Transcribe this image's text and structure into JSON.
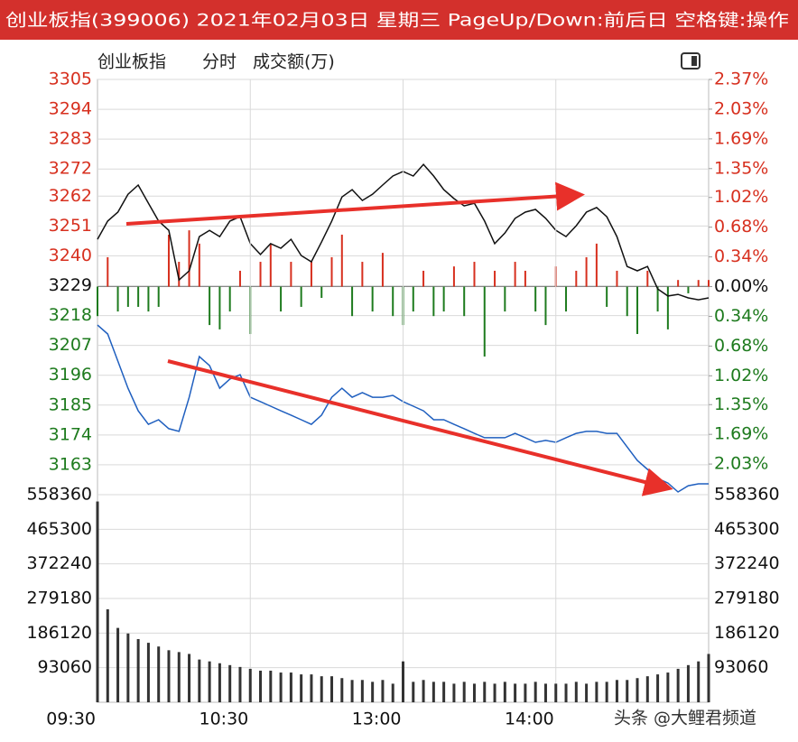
{
  "header": {
    "title": "创业板指(399006) 2021年02月03日 星期三 PageUp/Down:前后日 空格键:操作"
  },
  "chart_data": [
    {
      "type": "line",
      "title": "创业板指",
      "subtitle": "分时",
      "x": [
        0,
        4,
        8,
        12,
        16,
        20,
        24,
        28,
        32,
        36,
        40,
        44,
        48,
        52,
        56,
        60,
        64,
        68,
        72,
        76,
        80,
        84,
        88,
        92,
        96,
        100,
        104,
        108,
        112,
        116,
        120,
        124,
        128,
        132,
        136,
        140,
        144,
        148,
        152,
        156,
        160,
        164,
        168,
        172,
        176,
        180,
        184,
        188,
        192,
        196,
        200,
        204,
        208,
        212,
        216,
        220,
        224,
        228,
        232,
        236,
        240
      ],
      "xlim": [
        0,
        240
      ],
      "ylim": [
        3152,
        3305
      ],
      "yticks": [
        3305,
        3294,
        3283,
        3272,
        3262,
        3251,
        3240,
        3229,
        3218,
        3207,
        3196,
        3185,
        3174,
        3163
      ],
      "y2lim": [
        -2.38,
        2.37
      ],
      "y2ticks": [
        {
          "value": 2.37,
          "label": "2.37%"
        },
        {
          "value": 2.03,
          "label": "2.03%"
        },
        {
          "value": 1.69,
          "label": "1.69%"
        },
        {
          "value": 1.35,
          "label": "1.35%"
        },
        {
          "value": 1.02,
          "label": "1.02%"
        },
        {
          "value": 0.68,
          "label": "0.68%"
        },
        {
          "value": 0.34,
          "label": "0.34%"
        },
        {
          "value": 0,
          "label": "0.00%"
        },
        {
          "value": -0.34,
          "label": "0.34%"
        },
        {
          "value": -0.68,
          "label": "0.68%"
        },
        {
          "value": -1.02,
          "label": "1.02%"
        },
        {
          "value": -1.35,
          "label": "1.35%"
        },
        {
          "value": -1.69,
          "label": "1.69%"
        },
        {
          "value": -2.03,
          "label": "2.03%"
        }
      ],
      "up_color": "#d7301f",
      "down_color": "#1e7b1e",
      "series": [
        {
          "color": "#111111",
          "values": [
            3246.1,
            3252.8,
            3256.1,
            3262.7,
            3266.1,
            3259.4,
            3252.8,
            3249.4,
            3231.1,
            3234.5,
            3247.1,
            3249.4,
            3247.1,
            3252.8,
            3254.4,
            3244.5,
            3240.5,
            3244.5,
            3242.8,
            3246.1,
            3240.1,
            3237.8,
            3245.1,
            3252.8,
            3261.7,
            3264.4,
            3260.4,
            3262.7,
            3266.1,
            3269.4,
            3271.1,
            3269.4,
            3273.7,
            3269.4,
            3264.4,
            3261.1,
            3258.4,
            3259.4,
            3252.8,
            3244.5,
            3248.4,
            3253.8,
            3256.1,
            3257.1,
            3253.8,
            3249.4,
            3247.1,
            3251.1,
            3256.1,
            3257.8,
            3254.4,
            3247.1,
            3236.1,
            3234.5,
            3236.1,
            3227.8,
            3225.2,
            3225.8,
            3224.5,
            3223.8,
            3224.5
          ]
        },
        {
          "color": "#1f5fbf",
          "values": [
            3214.5,
            3211.2,
            3201.2,
            3191.2,
            3182.9,
            3177.9,
            3179.6,
            3176.3,
            3175.3,
            3187.9,
            3202.9,
            3199.6,
            3191.2,
            3194.6,
            3196.2,
            3187.9,
            3186.3,
            3184.6,
            3182.9,
            3181.3,
            3179.6,
            3177.9,
            3181.3,
            3187.9,
            3191.2,
            3187.9,
            3189.6,
            3187.9,
            3187.9,
            3188.6,
            3186.3,
            3184.6,
            3182.9,
            3179.6,
            3179.6,
            3177.9,
            3176.3,
            3174.6,
            3173.0,
            3173.0,
            3173.0,
            3174.6,
            3173.0,
            3171.3,
            3172.0,
            3171.3,
            3173.0,
            3174.6,
            3175.3,
            3175.3,
            3174.6,
            3174.6,
            3169.6,
            3164.6,
            3161.3,
            3158.0,
            3156.3,
            3153.0,
            3155.3,
            3156.0,
            3156.0
          ]
        }
      ],
      "bars": {
        "values": [
          3217.8,
          3239.5,
          3219.5,
          3221.2,
          3221.2,
          3219.5,
          3221.2,
          3247.8,
          3237.8,
          3249.4,
          3244.5,
          3214.5,
          3212.9,
          3219.5,
          3234.5,
          3211.2,
          3237.8,
          3244.5,
          3219.5,
          3237.8,
          3221.2,
          3237.8,
          3224.5,
          3239.5,
          3247.8,
          3217.8,
          3237.8,
          3219.5,
          3241.1,
          3217.8,
          3214.5,
          3219.5,
          3234.5,
          3217.8,
          3219.5,
          3236.1,
          3217.8,
          3237.8,
          3202.9,
          3234.5,
          3219.5,
          3237.8,
          3234.5,
          3219.5,
          3214.5,
          3236.1,
          3219.5,
          3234.5,
          3239.5,
          3244.5,
          3221.2,
          3234.5,
          3217.8,
          3211.2,
          3234.5,
          3219.5,
          3212.9,
          3231.1,
          3226.2,
          3231.1,
          3231.1
        ]
      }
    },
    {
      "type": "bar",
      "title": "成交额(万)",
      "x": [
        0,
        4,
        8,
        12,
        16,
        20,
        24,
        28,
        32,
        36,
        40,
        44,
        48,
        52,
        56,
        60,
        64,
        68,
        72,
        76,
        80,
        84,
        88,
        92,
        96,
        100,
        104,
        108,
        112,
        116,
        120,
        124,
        128,
        132,
        136,
        140,
        144,
        148,
        152,
        156,
        160,
        164,
        168,
        172,
        176,
        180,
        184,
        188,
        192,
        196,
        200,
        204,
        208,
        212,
        216,
        220,
        224,
        228,
        232,
        236,
        240
      ],
      "xlim": [
        0,
        240
      ],
      "xticks": [
        {
          "value": 0,
          "label": "09:30"
        },
        {
          "value": 60,
          "label": "10:30"
        },
        {
          "value": 120,
          "label": "13:00"
        },
        {
          "value": 180,
          "label": "14:00"
        }
      ],
      "ylim": [
        0,
        558360
      ],
      "yticks": [
        558360,
        465300,
        372240,
        279180,
        186120,
        93060
      ],
      "color": "#333333",
      "values": [
        540000,
        250000,
        200000,
        185000,
        170000,
        160000,
        150000,
        140000,
        135000,
        130000,
        115000,
        110000,
        105000,
        100000,
        95000,
        90000,
        85000,
        85000,
        80000,
        80000,
        75000,
        75000,
        70000,
        70000,
        65000,
        60000,
        60000,
        55000,
        60000,
        50000,
        110000,
        55000,
        60000,
        55000,
        55000,
        50000,
        55000,
        50000,
        55000,
        50000,
        55000,
        50000,
        50000,
        55000,
        50000,
        50000,
        50000,
        55000,
        50000,
        55000,
        55000,
        60000,
        60000,
        65000,
        70000,
        75000,
        80000,
        90000,
        100000,
        110000,
        130000
      ]
    }
  ],
  "watermark": "头条 @大鲤君频道"
}
